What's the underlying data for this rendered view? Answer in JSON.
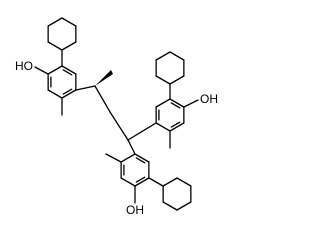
{
  "labels": [
    "HO",
    "OH",
    "OH"
  ]
}
